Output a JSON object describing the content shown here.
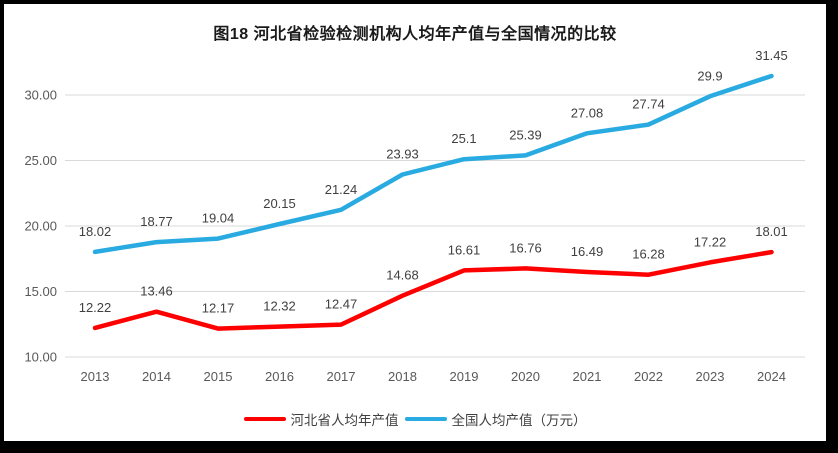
{
  "chart_data": {
    "type": "line",
    "title": "图18 河北省检验检测机构人均年产值与全国情况的比较",
    "categories": [
      "2013",
      "2014",
      "2015",
      "2016",
      "2017",
      "2018",
      "2019",
      "2020",
      "2021",
      "2022",
      "2023",
      "2024"
    ],
    "series": [
      {
        "name": "河北省人均年产值",
        "color": "#fe0000",
        "values": [
          12.22,
          13.46,
          12.17,
          12.32,
          12.47,
          14.68,
          16.61,
          16.76,
          16.49,
          16.28,
          17.22,
          18.01
        ]
      },
      {
        "name": "全国人均产值（万元）",
        "color": "#29abe2",
        "values": [
          18.02,
          18.77,
          19.04,
          20.15,
          21.24,
          23.93,
          25.1,
          25.39,
          27.08,
          27.74,
          29.9,
          31.45
        ]
      }
    ],
    "yticks": [
      {
        "value": 10,
        "label": "10.00"
      },
      {
        "value": 15,
        "label": "15.00"
      },
      {
        "value": 20,
        "label": "20.00"
      },
      {
        "value": 25,
        "label": "25.00"
      },
      {
        "value": 30,
        "label": "30.00"
      }
    ],
    "ylim": [
      10,
      32.5
    ],
    "grid": "horizontal",
    "legend_position": "bottom",
    "data_labels": "above"
  },
  "colors": {
    "frame": "#000000",
    "background": "#ffffff",
    "gridline": "#d9d9d9",
    "axis_text": "#595959",
    "data_label_text": "#404040",
    "title_text": "#1a1a1a"
  }
}
